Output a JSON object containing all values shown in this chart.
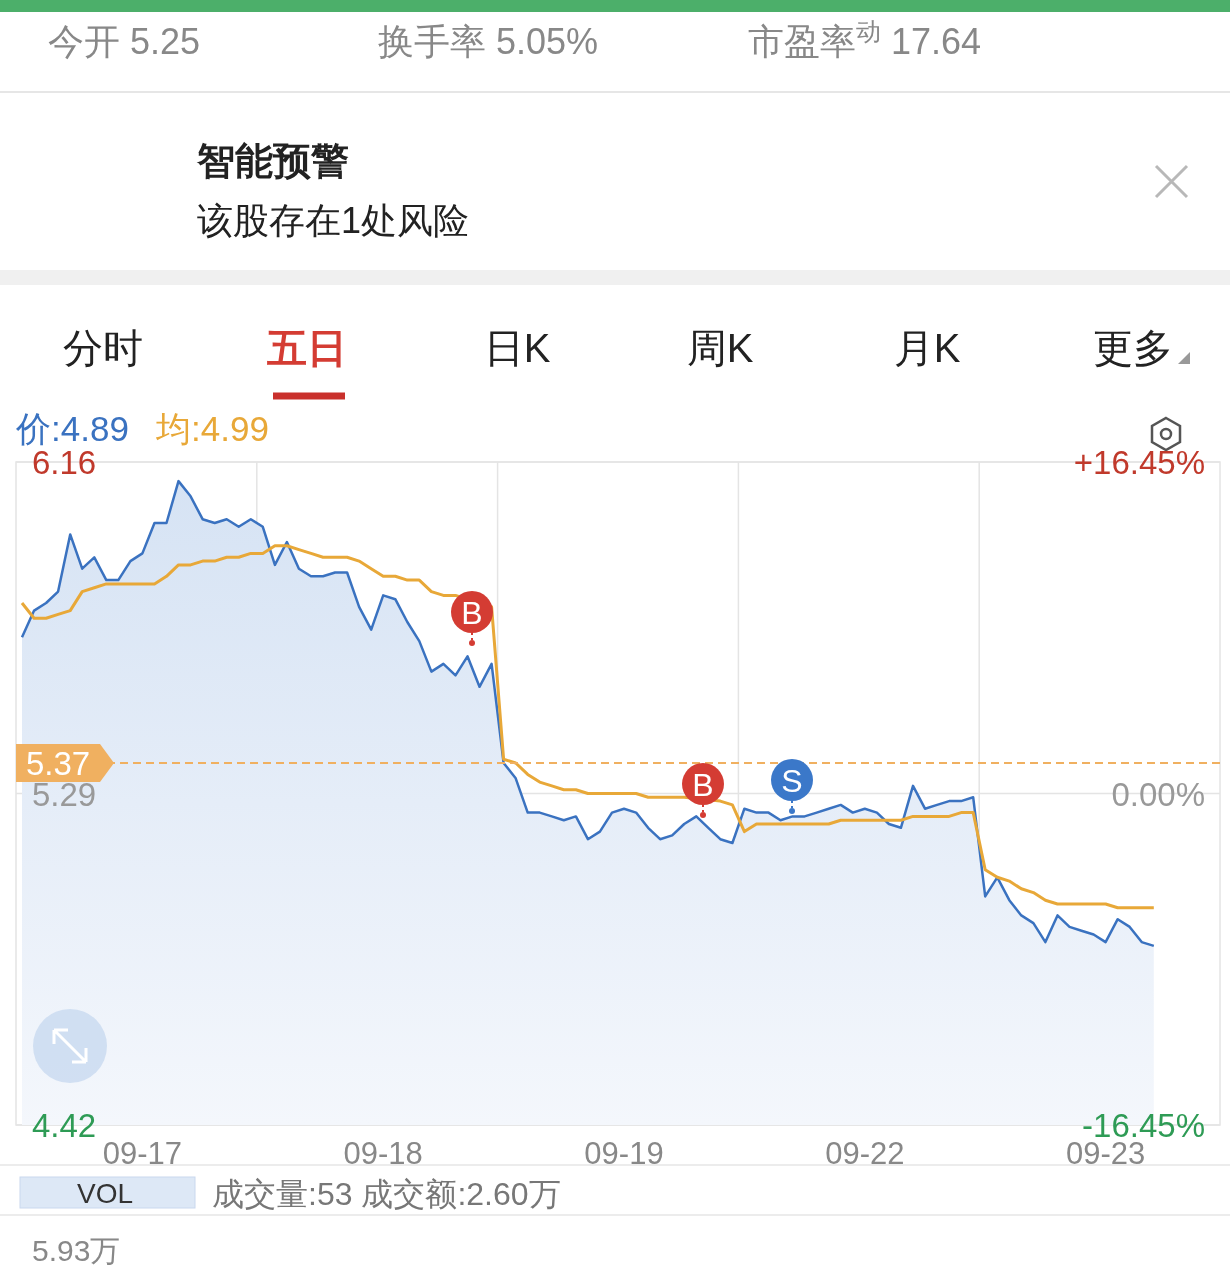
{
  "chart_data": {
    "type": "line",
    "legend": "top left",
    "grid": true,
    "categories": [
      null,
      null,
      null,
      null,
      null,
      null,
      null,
      null,
      null,
      null,
      "09-17",
      null,
      null,
      null,
      null,
      null,
      null,
      null,
      null,
      null,
      null,
      null,
      null,
      null,
      null,
      null,
      null,
      null,
      null,
      null,
      "09-18",
      null,
      null,
      null,
      null,
      null,
      null,
      null,
      null,
      null,
      null,
      null,
      null,
      null,
      null,
      null,
      null,
      null,
      null,
      null,
      "09-19",
      null,
      null,
      null,
      null,
      null,
      null,
      null,
      null,
      null,
      null,
      null,
      null,
      null,
      null,
      null,
      null,
      null,
      null,
      null,
      "09-22",
      null,
      null,
      null,
      null,
      null,
      null,
      null,
      null,
      null,
      null,
      null,
      null,
      null,
      null,
      null,
      null,
      null,
      null,
      null,
      "09-23",
      null,
      null,
      null,
      null,
      null,
      null,
      null,
      null,
      null
    ],
    "ylim": [
      4.42,
      6.16
    ],
    "yticks": [
      6.16,
      5.29,
      4.42
    ],
    "y2lim": [
      -16.45,
      16.45
    ],
    "y2ticks": [
      {
        "value": 16.45,
        "label": "+16.45%"
      },
      {
        "value": 0,
        "label": "0.00%"
      },
      {
        "value": -16.45,
        "label": "-16.45%"
      }
    ],
    "ref_lines": [
      {
        "axis": "y",
        "value": 5.37,
        "label": "5.37",
        "color": "#f0b060",
        "line_style": "dashed"
      }
    ],
    "series": [
      {
        "name": "价:4.89",
        "type": "area",
        "color": "#3a72c0",
        "values": [
          5.7,
          5.77,
          5.79,
          5.82,
          5.97,
          5.88,
          5.91,
          5.85,
          5.85,
          5.9,
          5.92,
          6.0,
          6.0,
          6.11,
          6.07,
          6.01,
          6.0,
          6.01,
          5.99,
          6.01,
          5.99,
          5.89,
          5.95,
          5.88,
          5.86,
          5.86,
          5.87,
          5.87,
          5.78,
          5.72,
          5.81,
          5.8,
          5.74,
          5.69,
          5.61,
          5.63,
          5.6,
          5.65,
          5.57,
          5.63,
          5.37,
          5.33,
          5.24,
          5.24,
          5.23,
          5.22,
          5.23,
          5.17,
          5.19,
          5.24,
          5.25,
          5.24,
          5.2,
          5.17,
          5.18,
          5.21,
          5.23,
          5.2,
          5.17,
          5.16,
          5.25,
          5.24,
          5.24,
          5.22,
          5.23,
          5.23,
          5.24,
          5.25,
          5.26,
          5.24,
          5.25,
          5.24,
          5.21,
          5.2,
          5.31,
          5.25,
          5.26,
          5.27,
          5.27,
          5.28,
          5.02,
          5.07,
          5.01,
          4.97,
          4.95,
          4.9,
          4.97,
          4.94,
          4.93,
          4.92,
          4.9,
          4.96,
          4.94,
          4.9,
          4.89,
          null,
          null,
          null,
          null,
          null
        ]
      },
      {
        "name": "均:4.99",
        "type": "line",
        "color": "#e8a838",
        "values": [
          5.79,
          5.75,
          5.75,
          5.76,
          5.77,
          5.82,
          5.83,
          5.84,
          5.84,
          5.84,
          5.84,
          5.84,
          5.86,
          5.89,
          5.89,
          5.9,
          5.9,
          5.91,
          5.91,
          5.92,
          5.92,
          5.94,
          5.94,
          5.93,
          5.92,
          5.91,
          5.91,
          5.91,
          5.9,
          5.88,
          5.86,
          5.86,
          5.85,
          5.85,
          5.82,
          5.81,
          5.81,
          null,
          null,
          5.78,
          5.38,
          5.37,
          5.34,
          5.32,
          5.31,
          5.3,
          5.3,
          5.29,
          5.29,
          5.29,
          5.29,
          5.29,
          5.28,
          5.28,
          5.28,
          5.28,
          null,
          null,
          5.27,
          5.26,
          5.19,
          5.21,
          5.21,
          5.21,
          5.21,
          5.21,
          5.21,
          5.21,
          5.22,
          5.22,
          5.22,
          5.22,
          5.22,
          5.22,
          5.23,
          5.23,
          5.23,
          5.23,
          5.24,
          5.24,
          5.09,
          5.07,
          5.06,
          5.04,
          5.03,
          5.01,
          5.0,
          5.0,
          5.0,
          5.0,
          5.0,
          4.99,
          4.99,
          4.99,
          4.99,
          null,
          null,
          null,
          null,
          null
        ]
      }
    ],
    "annotations": [
      "今开 5.25",
      "换手率 5.05%",
      "市盈率$^{动}$ 17.64",
      "智能预警",
      "该股存在1处风险",
      "分时",
      "五日",
      "日K",
      "周K",
      "月K",
      "更多",
      "VOL",
      "成交量:53 成交额:2.60万",
      "5.93万",
      "B",
      "B",
      "S"
    ]
  }
}
